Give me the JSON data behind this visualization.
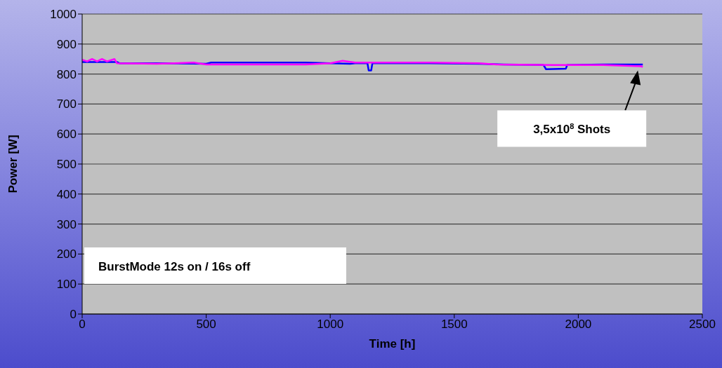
{
  "chart_data": {
    "type": "line",
    "xlabel": "Time [h]",
    "ylabel": "Power [W]",
    "xlim": [
      0,
      2500
    ],
    "xticks": [
      0,
      500,
      1000,
      1500,
      2000,
      2500
    ],
    "ylim": [
      0,
      1000
    ],
    "yticks": [
      0,
      100,
      200,
      300,
      400,
      500,
      600,
      700,
      800,
      900,
      1000
    ],
    "grid": "y",
    "series": [
      {
        "color": "#0000ff",
        "x": [
          0,
          140,
          150,
          300,
          500,
          520,
          700,
          900,
          1000,
          1080,
          1100,
          1150,
          1155,
          1165,
          1170,
          1400,
          1600,
          1700,
          1860,
          1870,
          1950,
          1955,
          2100,
          2260
        ],
        "values": [
          840,
          840,
          836,
          836,
          834,
          838,
          838,
          838,
          836,
          834,
          836,
          836,
          812,
          812,
          836,
          836,
          834,
          832,
          830,
          816,
          818,
          830,
          832,
          832
        ]
      },
      {
        "color": "#ff00ff",
        "x": [
          0,
          20,
          40,
          60,
          80,
          100,
          130,
          140,
          300,
          450,
          500,
          700,
          900,
          1000,
          1050,
          1100,
          1400,
          1600,
          1670,
          1900,
          2100,
          2250,
          2260
        ],
        "values": [
          848,
          842,
          850,
          842,
          850,
          842,
          850,
          836,
          834,
          838,
          832,
          832,
          832,
          836,
          844,
          838,
          838,
          836,
          832,
          830,
          830,
          826,
          824
        ]
      }
    ],
    "annotations": [
      "BurstMode 12s on / 16s off",
      "3,5x10$^{8}$ Shots"
    ]
  }
}
